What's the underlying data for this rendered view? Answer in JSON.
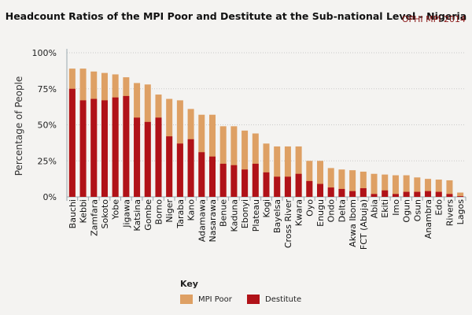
{
  "chart_data": {
    "type": "bar",
    "stacked": "overlay",
    "title": "Headcount Ratios of the MPI Poor and Destitute at the Sub-national Level - Nigeria",
    "source": "OPHI MPI 2014",
    "xlabel": "",
    "ylabel": "Percentage of People",
    "ylim": [
      0,
      100
    ],
    "yticks": [
      0,
      25,
      50,
      75,
      100
    ],
    "ytick_labels": [
      "0%",
      "25%",
      "50%",
      "75%",
      "100%"
    ],
    "grid": true,
    "legend": {
      "title": "Key",
      "position": "bottom-center"
    },
    "categories": [
      "Bauchi",
      "Kebbi",
      "Zamfara",
      "Sokoto",
      "Yobe",
      "Jigawa",
      "Katsina",
      "Gombe",
      "Borno",
      "Niger",
      "Taraba",
      "Kano",
      "Adamawa",
      "Nasarawa",
      "Benue",
      "Kaduna",
      "Ebonyi",
      "Plateau",
      "Kogi",
      "Bayelsa",
      "Cross River",
      "Kwara",
      "Oyo",
      "Enugu",
      "Ondo",
      "Delta",
      "Akwa Ibom",
      "FCT (Abuja)",
      "Abia",
      "Ekiti",
      "Imo",
      "Ogun",
      "Osun",
      "Anambra",
      "Edo",
      "Rivers",
      "Lagos"
    ],
    "series": [
      {
        "name": "MPI Poor",
        "color": "#dea064",
        "values": [
          89,
          89,
          87,
          86,
          85,
          83,
          79,
          78,
          71,
          68,
          67,
          61,
          57,
          57,
          49,
          49,
          46,
          44,
          37,
          35,
          35,
          35,
          25,
          25,
          20,
          19,
          18.5,
          17.5,
          16,
          15.5,
          15,
          15,
          13.5,
          12.5,
          12,
          11.5,
          3
        ]
      },
      {
        "name": "Destitute",
        "color": "#b01218",
        "values": [
          75,
          67,
          68,
          67,
          69,
          70,
          55,
          52,
          55,
          42,
          37,
          40,
          31,
          28,
          23,
          22,
          19,
          23,
          17,
          14,
          14,
          16,
          11,
          9,
          6.5,
          5.5,
          4,
          6,
          2,
          4.5,
          2,
          3.5,
          3.5,
          4,
          3.5,
          2,
          0.5
        ]
      }
    ]
  }
}
